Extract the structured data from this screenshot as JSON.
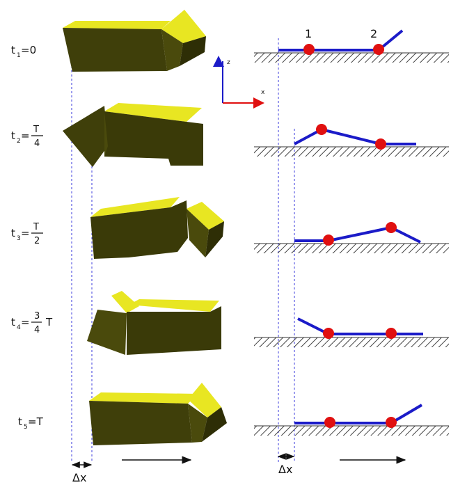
{
  "time_labels": [
    {
      "main": "t",
      "sub": "1",
      "rest": "=0"
    },
    {
      "main": "t",
      "sub": "2",
      "rest": "=",
      "num": "T",
      "den": "4"
    },
    {
      "main": "t",
      "sub": "3",
      "rest": "=",
      "num": "T",
      "den": "2"
    },
    {
      "main": "t",
      "sub": "4",
      "rest": "=",
      "num": "3",
      "den": "4",
      "after": "T"
    },
    {
      "main": "t",
      "sub": "5",
      "rest": "=T"
    }
  ],
  "joint_labels": [
    "1",
    "2"
  ],
  "axis_labels": {
    "z": "z",
    "x": "x"
  },
  "displacement_label": "Δx",
  "colors": {
    "block_top": "#e8e622",
    "block_side": "#4a4a0c",
    "block_front": "#3a3a08",
    "link": "#1b1bc8",
    "joint": "#e01010",
    "ground_hatch": "#444444",
    "axis_z": "#1b1bc8",
    "axis_x": "#e01010",
    "guide_line": "#3a3adc"
  }
}
